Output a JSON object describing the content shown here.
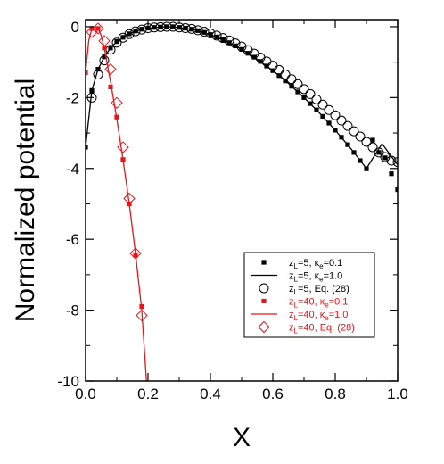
{
  "chart_data": {
    "type": "line",
    "xlabel": "X",
    "ylabel": "Normalized potential",
    "xlim": [
      0,
      1
    ],
    "ylim": [
      -10,
      0.2
    ],
    "xticks": [
      0.0,
      0.2,
      0.4,
      0.6,
      0.8,
      1.0
    ],
    "xtick_labels": [
      "0.0",
      "0.2",
      "0.4",
      "0.6",
      "0.8",
      "1.0"
    ],
    "yticks": [
      0,
      -2,
      -4,
      -6,
      -8,
      -10
    ],
    "ytick_labels": [
      "0",
      "-2",
      "-4",
      "-6",
      "-8",
      "-10"
    ],
    "grid": false,
    "legend_position": "bottom-right",
    "series": [
      {
        "name": "zL=5, κe=0.1",
        "legend_main": "z",
        "legend_sub1": "L",
        "legend_mid": "=5, ",
        "legend_kappa": "κ",
        "legend_sub2": "e",
        "legend_end": "=0.1",
        "marker": "square",
        "line": false,
        "color": "#000000",
        "x": [
          0.0,
          0.02,
          0.04,
          0.06,
          0.08,
          0.1,
          0.12,
          0.14,
          0.16,
          0.18,
          0.2,
          0.22,
          0.24,
          0.26,
          0.28,
          0.3,
          0.32,
          0.34,
          0.36,
          0.38,
          0.4,
          0.42,
          0.44,
          0.46,
          0.48,
          0.5,
          0.52,
          0.54,
          0.56,
          0.58,
          0.6,
          0.62,
          0.64,
          0.66,
          0.68,
          0.7,
          0.72,
          0.74,
          0.76,
          0.78,
          0.8,
          0.82,
          0.84,
          0.86,
          0.88,
          0.9,
          0.92,
          0.94,
          0.96,
          0.98,
          1.0
        ],
        "y": [
          -3.4,
          -1.8,
          -1.2,
          -0.85,
          -0.6,
          -0.42,
          -0.3,
          -0.2,
          -0.12,
          -0.07,
          -0.04,
          -0.02,
          -0.01,
          0,
          0,
          -0.02,
          -0.04,
          -0.07,
          -0.11,
          -0.16,
          -0.22,
          -0.29,
          -0.37,
          -0.45,
          -0.54,
          -0.64,
          -0.75,
          -0.86,
          -0.98,
          -1.11,
          -1.24,
          -1.38,
          -1.53,
          -1.68,
          -1.84,
          -2.0,
          -2.17,
          -2.35,
          -2.53,
          -2.72,
          -2.92,
          -3.12,
          -3.33,
          -3.55,
          -3.78,
          -4.01,
          -3.2,
          -3.55,
          -3.7,
          -4.15,
          -4.6
        ]
      },
      {
        "name": "zL=5, κe=1.0",
        "legend_main": "z",
        "legend_sub1": "L",
        "legend_mid": "=5, ",
        "legend_kappa": "κ",
        "legend_sub2": "e",
        "legend_end": "=1.0",
        "marker": "none",
        "line": true,
        "color": "#000000",
        "x": [
          0.0,
          0.02,
          0.04,
          0.06,
          0.08,
          0.1,
          0.14,
          0.18,
          0.22,
          0.26,
          0.3,
          0.35,
          0.4,
          0.45,
          0.5,
          0.55,
          0.6,
          0.65,
          0.7,
          0.75,
          0.8,
          0.85,
          0.9,
          0.95,
          1.0
        ],
        "y": [
          -3.4,
          -1.8,
          -1.2,
          -0.85,
          -0.6,
          -0.42,
          -0.2,
          -0.07,
          -0.02,
          0,
          -0.02,
          -0.09,
          -0.22,
          -0.41,
          -0.64,
          -0.92,
          -1.24,
          -1.6,
          -2.0,
          -2.44,
          -2.92,
          -3.44,
          -4.0,
          -3.3,
          -3.9
        ]
      },
      {
        "name": "zL=5, Eq. (28)",
        "legend_main": "z",
        "legend_sub1": "L",
        "legend_mid": "=5, Eq. (28)",
        "legend_kappa": "",
        "legend_sub2": "",
        "legend_end": "",
        "marker": "circle",
        "line": false,
        "color": "#000000",
        "x": [
          0.02,
          0.04,
          0.06,
          0.08,
          0.1,
          0.12,
          0.14,
          0.16,
          0.18,
          0.2,
          0.22,
          0.24,
          0.26,
          0.28,
          0.3,
          0.32,
          0.34,
          0.36,
          0.38,
          0.4,
          0.42,
          0.44,
          0.46,
          0.48,
          0.5,
          0.52,
          0.54,
          0.56,
          0.58,
          0.6,
          0.62,
          0.64,
          0.66,
          0.68,
          0.7,
          0.72,
          0.74,
          0.76,
          0.78,
          0.8,
          0.82,
          0.84,
          0.86,
          0.88,
          0.9,
          0.92,
          0.94,
          0.96,
          0.98,
          1.0
        ],
        "y": [
          -2.0,
          -1.35,
          -0.95,
          -0.65,
          -0.45,
          -0.31,
          -0.21,
          -0.13,
          -0.08,
          -0.04,
          -0.02,
          -0.01,
          0,
          0,
          -0.02,
          -0.04,
          -0.06,
          -0.1,
          -0.14,
          -0.19,
          -0.25,
          -0.32,
          -0.39,
          -0.47,
          -0.56,
          -0.66,
          -0.76,
          -0.87,
          -0.98,
          -1.1,
          -1.22,
          -1.35,
          -1.48,
          -1.62,
          -1.76,
          -1.9,
          -2.05,
          -2.2,
          -2.35,
          -2.5,
          -2.65,
          -2.8,
          -2.95,
          -3.1,
          -3.25,
          -3.4,
          -3.55,
          -3.68,
          -3.78,
          -3.82
        ]
      },
      {
        "name": "zL=40, κe=0.1",
        "legend_main": "z",
        "legend_sub1": "L",
        "legend_mid": "=40, ",
        "legend_kappa": "κ",
        "legend_sub2": "e",
        "legend_end": "=0.1",
        "marker": "square",
        "line": false,
        "color": "#e8141a",
        "x": [
          0.0,
          0.02,
          0.04,
          0.06,
          0.08,
          0.1,
          0.12,
          0.14,
          0.16,
          0.18
        ],
        "y": [
          -1.3,
          -0.05,
          -0.05,
          -0.6,
          -1.7,
          -2.55,
          -3.75,
          -5.0,
          -6.45,
          -7.9
        ]
      },
      {
        "name": "zL=40, κe=1.0",
        "legend_main": "z",
        "legend_sub1": "L",
        "legend_mid": "=40, ",
        "legend_kappa": "κ",
        "legend_sub2": "e",
        "legend_end": "=1.0",
        "marker": "none",
        "line": true,
        "color": "#e8141a",
        "x": [
          0.0,
          0.01,
          0.02,
          0.03,
          0.04,
          0.05,
          0.06,
          0.08,
          0.1,
          0.12,
          0.14,
          0.16,
          0.18,
          0.195
        ],
        "y": [
          -1.3,
          -0.4,
          -0.05,
          0,
          -0.05,
          -0.25,
          -0.6,
          -1.55,
          -2.6,
          -3.75,
          -5.0,
          -6.4,
          -8.0,
          -10.0
        ]
      },
      {
        "name": "zL=40, Eq. (28)",
        "legend_main": "z",
        "legend_sub1": "L",
        "legend_mid": "=40, Eq. (28)",
        "legend_kappa": "",
        "legend_sub2": "",
        "legend_end": "",
        "marker": "diamond",
        "line": false,
        "color": "#e8141a",
        "x": [
          0.02,
          0.04,
          0.06,
          0.08,
          0.1,
          0.12,
          0.14,
          0.16,
          0.18
        ],
        "y": [
          -0.15,
          -0.05,
          -0.4,
          -1.2,
          -2.15,
          -3.4,
          -4.85,
          -6.4,
          -8.15
        ]
      }
    ]
  }
}
